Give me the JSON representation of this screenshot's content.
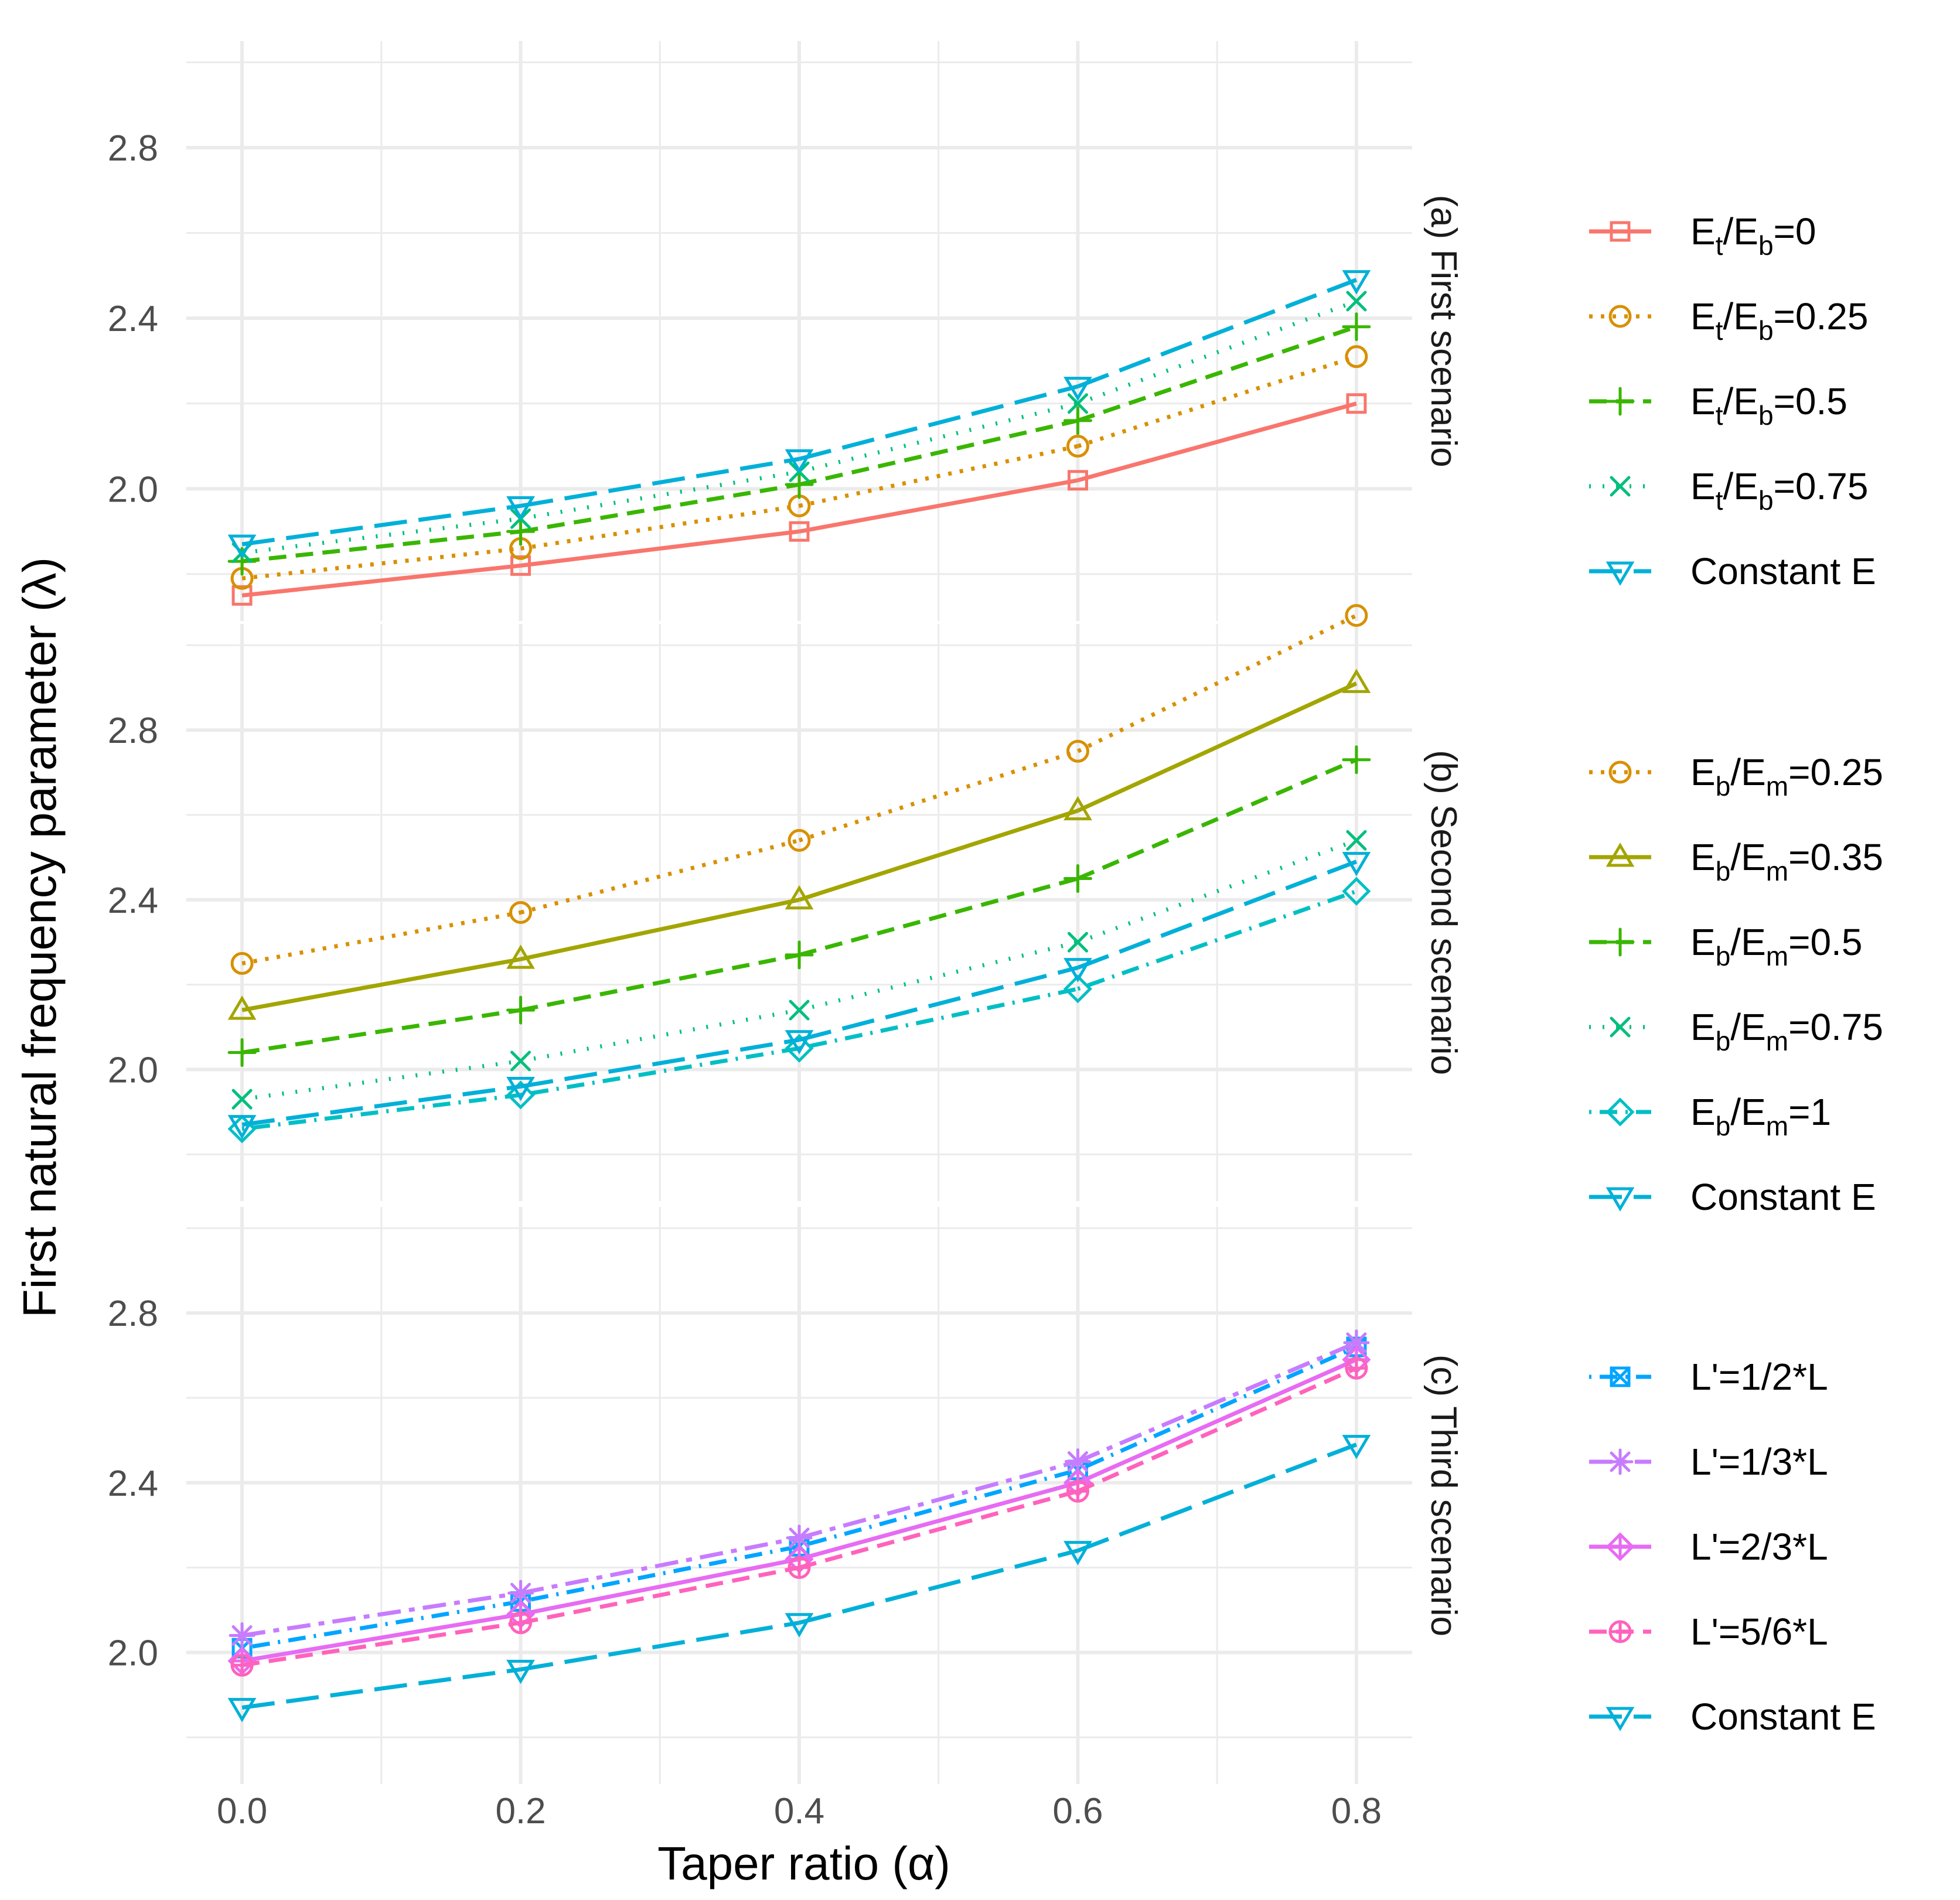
{
  "figure": {
    "ylabel": "First natural frequency parameter (λ)",
    "xlabel": "Taper ratio (α)"
  },
  "chart_data": {
    "type": "line",
    "x": [
      0.0,
      0.2,
      0.4,
      0.6,
      0.8
    ],
    "xticks": [
      "0.0",
      "0.2",
      "0.4",
      "0.6",
      "0.8"
    ],
    "xlim": [
      -0.04,
      0.84
    ],
    "ylim": [
      1.69,
      3.05
    ],
    "yticks": [
      2.0,
      2.4,
      2.8
    ],
    "ytick_labels": [
      "2.0",
      "2.4",
      "2.8"
    ],
    "grid": true,
    "panels": [
      {
        "strip": "(a) First scenario",
        "series": [
          {
            "name": "Et/Eb=0",
            "legend": {
              "base": "E",
              "sub1": "t",
              "mid": "/E",
              "sub2": "b",
              "tail": "=0"
            },
            "color": "#F8766D",
            "dash": "solid",
            "marker": "square",
            "values": [
              1.75,
              1.82,
              1.9,
              2.02,
              2.2
            ]
          },
          {
            "name": "Et/Eb=0.25",
            "legend": {
              "base": "E",
              "sub1": "t",
              "mid": "/E",
              "sub2": "b",
              "tail": "=0.25"
            },
            "color": "#D89000",
            "dash": "dotted",
            "marker": "circle",
            "values": [
              1.79,
              1.86,
              1.96,
              2.1,
              2.31
            ]
          },
          {
            "name": "Et/Eb=0.5",
            "legend": {
              "base": "E",
              "sub1": "t",
              "mid": "/E",
              "sub2": "b",
              "tail": "=0.5"
            },
            "color": "#39B600",
            "dash": "dashed",
            "marker": "plus",
            "values": [
              1.83,
              1.9,
              2.01,
              2.16,
              2.38
            ]
          },
          {
            "name": "Et/Eb=0.75",
            "legend": {
              "base": "E",
              "sub1": "t",
              "mid": "/E",
              "sub2": "b",
              "tail": "=0.75"
            },
            "color": "#00BF7D",
            "dash": "dotted2",
            "marker": "cross",
            "values": [
              1.85,
              1.93,
              2.04,
              2.2,
              2.44
            ]
          },
          {
            "name": "Constant E",
            "legend": {
              "base": "Constant E",
              "sub1": "",
              "mid": "",
              "sub2": "",
              "tail": ""
            },
            "color": "#00B0D8",
            "dash": "longdash",
            "marker": "triangle-down",
            "values": [
              1.87,
              1.96,
              2.07,
              2.24,
              2.49
            ]
          }
        ]
      },
      {
        "strip": "(b) Second scenario",
        "series": [
          {
            "name": "Eb/Em=0.25",
            "legend": {
              "base": "E",
              "sub1": "b",
              "mid": "/E",
              "sub2": "m",
              "tail": "=0.25"
            },
            "color": "#D89000",
            "dash": "dotted",
            "marker": "circle",
            "values": [
              2.25,
              2.37,
              2.54,
              2.75,
              3.07
            ]
          },
          {
            "name": "Eb/Em=0.35",
            "legend": {
              "base": "E",
              "sub1": "b",
              "mid": "/E",
              "sub2": "m",
              "tail": "=0.35"
            },
            "color": "#A3A500",
            "dash": "solid",
            "marker": "triangle-up",
            "values": [
              2.14,
              2.26,
              2.4,
              2.61,
              2.91
            ]
          },
          {
            "name": "Eb/Em=0.5",
            "legend": {
              "base": "E",
              "sub1": "b",
              "mid": "/E",
              "sub2": "m",
              "tail": "=0.5"
            },
            "color": "#39B600",
            "dash": "dashed",
            "marker": "plus",
            "values": [
              2.04,
              2.14,
              2.27,
              2.45,
              2.73
            ]
          },
          {
            "name": "Eb/Em=0.75",
            "legend": {
              "base": "E",
              "sub1": "b",
              "mid": "/E",
              "sub2": "m",
              "tail": "=0.75"
            },
            "color": "#00BF7D",
            "dash": "dotted2",
            "marker": "cross",
            "values": [
              1.93,
              2.02,
              2.14,
              2.3,
              2.54
            ]
          },
          {
            "name": "Eb/Em=1",
            "legend": {
              "base": "E",
              "sub1": "b",
              "mid": "/E",
              "sub2": "m",
              "tail": "=1"
            },
            "color": "#00BFC4",
            "dash": "dotdash",
            "marker": "diamond",
            "values": [
              1.86,
              1.94,
              2.05,
              2.19,
              2.42
            ]
          },
          {
            "name": "Constant E",
            "legend": {
              "base": "Constant E",
              "sub1": "",
              "mid": "",
              "sub2": "",
              "tail": ""
            },
            "color": "#00B0D8",
            "dash": "longdash",
            "marker": "triangle-down",
            "values": [
              1.87,
              1.96,
              2.07,
              2.24,
              2.49
            ]
          }
        ]
      },
      {
        "strip": "(c) Third scenario",
        "series": [
          {
            "name": "L'=1/2*L",
            "legend": {
              "base": "L'=1/2*L",
              "sub1": "",
              "mid": "",
              "sub2": "",
              "tail": ""
            },
            "color": "#00A5FF",
            "dash": "dotdash",
            "marker": "square-x",
            "values": [
              2.01,
              2.12,
              2.25,
              2.43,
              2.72
            ]
          },
          {
            "name": "L'=1/3*L",
            "legend": {
              "base": "L'=1/3*L",
              "sub1": "",
              "mid": "",
              "sub2": "",
              "tail": ""
            },
            "color": "#C77CFF",
            "dash": "twodash",
            "marker": "asterisk",
            "values": [
              2.04,
              2.14,
              2.27,
              2.45,
              2.73
            ]
          },
          {
            "name": "L'=2/3*L",
            "legend": {
              "base": "L'=2/3*L",
              "sub1": "",
              "mid": "",
              "sub2": "",
              "tail": ""
            },
            "color": "#E76BF3",
            "dash": "solid",
            "marker": "diamond-plus",
            "values": [
              1.98,
              2.09,
              2.22,
              2.4,
              2.69
            ]
          },
          {
            "name": "L'=5/6*L",
            "legend": {
              "base": "L'=5/6*L",
              "sub1": "",
              "mid": "",
              "sub2": "",
              "tail": ""
            },
            "color": "#FF62BC",
            "dash": "dashed",
            "marker": "circle-plus",
            "values": [
              1.97,
              2.07,
              2.2,
              2.38,
              2.67
            ]
          },
          {
            "name": "Constant E",
            "legend": {
              "base": "Constant E",
              "sub1": "",
              "mid": "",
              "sub2": "",
              "tail": ""
            },
            "color": "#00B0D8",
            "dash": "longdash",
            "marker": "triangle-down",
            "values": [
              1.87,
              1.96,
              2.07,
              2.24,
              2.49
            ]
          }
        ]
      }
    ]
  }
}
